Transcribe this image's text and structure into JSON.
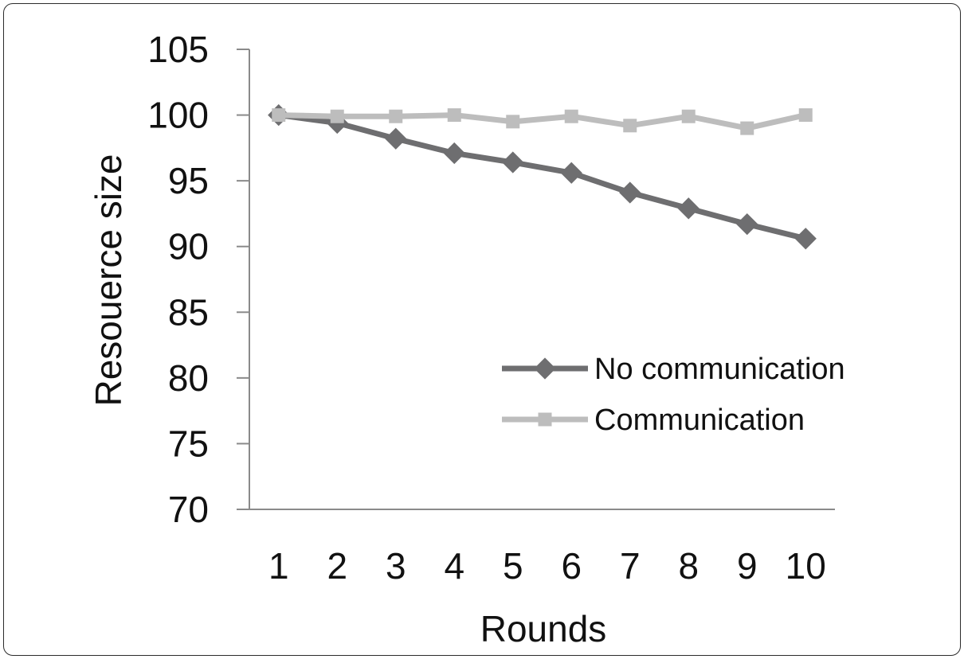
{
  "chart_data": {
    "type": "line",
    "title": "",
    "xlabel": "Rounds",
    "ylabel": "Resouerce size",
    "x": [
      1,
      2,
      3,
      4,
      5,
      6,
      7,
      8,
      9,
      10
    ],
    "ylim": [
      70,
      105
    ],
    "yticks": [
      70,
      75,
      80,
      85,
      90,
      95,
      100,
      105
    ],
    "grid": false,
    "legend_position": "right",
    "series": [
      {
        "name": "No communication",
        "values": [
          100,
          99.4,
          98.2,
          97.1,
          96.4,
          95.6,
          94.1,
          92.9,
          91.7,
          90.6
        ],
        "color": "#6e6e70",
        "marker": "diamond"
      },
      {
        "name": "Communication",
        "values": [
          100,
          99.9,
          99.9,
          100,
          99.5,
          99.9,
          99.2,
          99.9,
          99.0,
          100
        ],
        "color": "#bdbdbd",
        "marker": "square"
      }
    ]
  }
}
